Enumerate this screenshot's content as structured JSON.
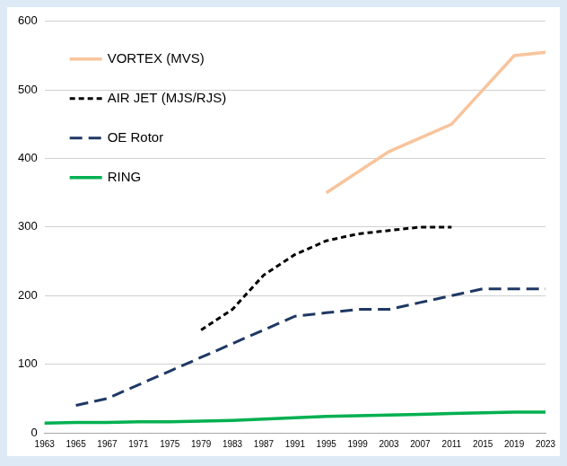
{
  "chart_data": {
    "type": "line",
    "categories": [
      "1963",
      "1965",
      "1967",
      "1971",
      "1975",
      "1979",
      "1983",
      "1987",
      "1991",
      "1995",
      "1999",
      "2003",
      "2007",
      "2011",
      "2015",
      "2019",
      "2023"
    ],
    "series": [
      {
        "name": "VORTEX (MVS)",
        "color": "#f8c49c",
        "line_style": "solid",
        "marker": "none",
        "values": [
          null,
          null,
          null,
          null,
          null,
          null,
          null,
          null,
          null,
          350,
          380,
          410,
          430,
          450,
          500,
          550,
          555
        ]
      },
      {
        "name": "AIR JET (MJS/RJS)",
        "color": "#000000",
        "line_style": "dashed",
        "marker": "none",
        "values": [
          null,
          null,
          null,
          null,
          null,
          150,
          180,
          230,
          260,
          280,
          290,
          295,
          300,
          300,
          null,
          null,
          null
        ]
      },
      {
        "name": "OE Rotor",
        "color": "#1f3864",
        "line_style": "long_dashed",
        "marker": "none",
        "values": [
          null,
          40,
          50,
          70,
          90,
          110,
          130,
          150,
          170,
          175,
          180,
          180,
          190,
          200,
          210,
          210,
          210
        ]
      },
      {
        "name": "RING",
        "color": "#00b050",
        "line_style": "solid",
        "marker": "none",
        "values": [
          14,
          15,
          15,
          16,
          16,
          17,
          18,
          20,
          22,
          24,
          25,
          26,
          27,
          28,
          29,
          30,
          30
        ]
      }
    ],
    "ylim": [
      0,
      600
    ],
    "yticks": [
      0,
      100,
      200,
      300,
      400,
      500,
      600
    ],
    "grid": true,
    "legend": "upper left"
  }
}
